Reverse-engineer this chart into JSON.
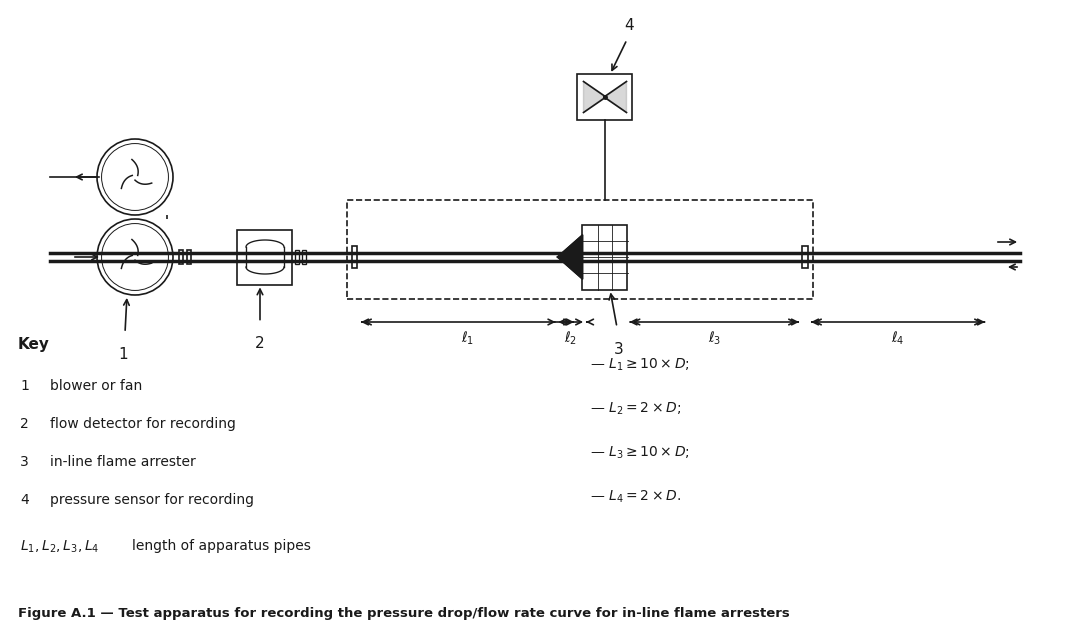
{
  "bg_color": "#ffffff",
  "line_color": "#1a1a1a",
  "title": "Figure A.1 — Test apparatus for recording the pressure drop/flow rate curve for in-line flame arresters",
  "key_items": [
    {
      "num": "1",
      "text": "blower or fan"
    },
    {
      "num": "2",
      "text": "flow detector for recording"
    },
    {
      "num": "3",
      "text": "in-line flame arrester"
    },
    {
      "num": "4",
      "text": "pressure sensor for recording"
    }
  ],
  "pipe_label": "L₁, L₂, L₃, L₄",
  "pipe_label_desc": "length of apparatus pipes",
  "right_labels": [
    "— $L_1 \\geq 10 \\times D$;",
    "— $L_2 = 2 \\times D$;",
    "— $L_3 \\geq 10 \\times D$;",
    "— $L_4 = 2 \\times D$."
  ]
}
